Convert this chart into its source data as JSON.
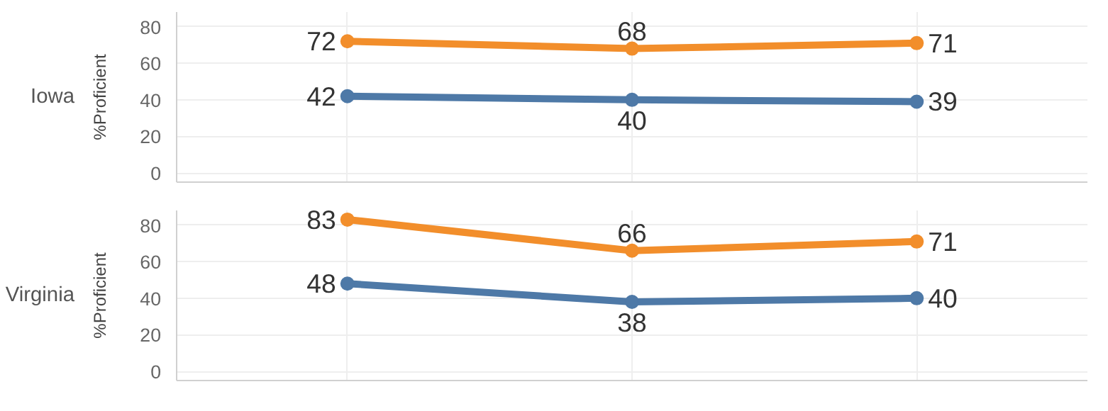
{
  "chart_data": [
    {
      "type": "line",
      "title": "Iowa",
      "ylabel": "%Proficient",
      "categories": [
        null,
        null,
        null
      ],
      "ylim": [
        -5,
        88
      ],
      "yticks": [
        0,
        20,
        40,
        60,
        80
      ],
      "tick_labels": "y",
      "grid": true,
      "marker": "circle",
      "data_labels": true,
      "series": [
        {
          "color": "#f28e2b",
          "values": [
            72,
            68,
            71
          ]
        },
        {
          "color": "#4e79a7",
          "values": [
            42,
            40,
            39
          ]
        }
      ]
    },
    {
      "type": "line",
      "title": "Virginia",
      "ylabel": "%Proficient",
      "categories": [
        null,
        null,
        null
      ],
      "ylim": [
        -5,
        88
      ],
      "yticks": [
        0,
        20,
        40,
        60,
        80
      ],
      "tick_labels": "y",
      "grid": true,
      "marker": "circle",
      "data_labels": true,
      "series": [
        {
          "color": "#f28e2b",
          "values": [
            83,
            66,
            71
          ]
        },
        {
          "color": "#4e79a7",
          "values": [
            48,
            38,
            40
          ]
        }
      ]
    }
  ]
}
